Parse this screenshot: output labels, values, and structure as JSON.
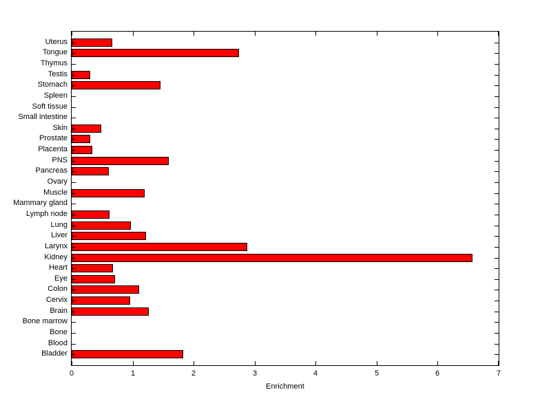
{
  "figure": {
    "background_color": "#ffffff",
    "axis_color": "#000000",
    "text_color": "#000000"
  },
  "chart_data": {
    "type": "bar",
    "orientation": "horizontal",
    "title": "",
    "xlabel": "Enrichment",
    "ylabel": "",
    "xlim": [
      0,
      7
    ],
    "xticks": [
      0,
      1,
      2,
      3,
      4,
      5,
      6,
      7
    ],
    "grid": false,
    "legend": "none",
    "bar_color": "#ff0000",
    "bar_edge_color": "#000000",
    "categories": [
      "Uterus",
      "Tongue",
      "Thymus",
      "Testis",
      "Stomach",
      "Spleen",
      "Soft tissue",
      "Small intestine",
      "Skin",
      "Prostate",
      "Placenta",
      "PNS",
      "Pancreas",
      "Ovary",
      "Muscle",
      "Mammary gland",
      "Lymph node",
      "Lung",
      "Liver",
      "Larynx",
      "Kidney",
      "Heart",
      "Eye",
      "Colon",
      "Cervix",
      "Brain",
      "Bone marrow",
      "Bone",
      "Blood",
      "Bladder"
    ],
    "values": [
      0.67,
      2.74,
      0,
      0.3,
      1.46,
      0,
      0,
      0,
      0.49,
      0.31,
      0.34,
      1.59,
      0.61,
      0,
      1.2,
      0,
      0.62,
      0.97,
      1.22,
      2.88,
      6.57,
      0.68,
      0.71,
      1.11,
      0.96,
      1.27,
      0,
      0,
      0,
      1.83
    ]
  }
}
